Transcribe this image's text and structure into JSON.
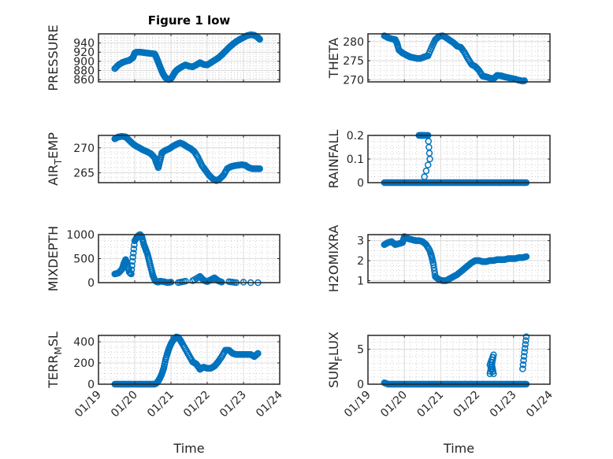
{
  "figure_title": "Figure 1 low",
  "chart_data": [
    {
      "type": "scatter",
      "title": "Figure 1 low",
      "ylabel": "PRESSURE",
      "ylabel_sub": null,
      "xlabel": "",
      "x_ticks": [
        "01/19",
        "01/20",
        "01/21",
        "01/22",
        "01/23",
        "01/24"
      ],
      "show_x_ticklabels": false,
      "xlim": [
        0,
        5
      ],
      "ylim": [
        855,
        960
      ],
      "y_ticks": [
        860,
        880,
        900,
        920,
        940
      ],
      "grid": true,
      "marker": "circle-open",
      "color": "#0072BD",
      "x": [
        0.45,
        0.55,
        0.65,
        0.75,
        0.85,
        0.95,
        1.0,
        1.05,
        1.15,
        1.25,
        1.35,
        1.45,
        1.55,
        1.6,
        1.65,
        1.7,
        1.75,
        1.8,
        1.85,
        1.9,
        1.95,
        2.0,
        2.05,
        2.1,
        2.15,
        2.2,
        2.3,
        2.4,
        2.5,
        2.6,
        2.7,
        2.8,
        2.9,
        3.0,
        3.1,
        3.2,
        3.3,
        3.4,
        3.5,
        3.6,
        3.7,
        3.8,
        3.9,
        4.0,
        4.1,
        4.2,
        4.3,
        4.4,
        4.45
      ],
      "y": [
        884,
        892,
        897,
        900,
        902,
        908,
        918,
        920,
        920,
        919,
        918,
        917,
        916,
        908,
        898,
        888,
        878,
        870,
        864,
        861,
        860,
        862,
        868,
        875,
        880,
        883,
        888,
        892,
        889,
        888,
        892,
        897,
        893,
        892,
        897,
        902,
        907,
        914,
        922,
        930,
        937,
        943,
        948,
        952,
        956,
        958,
        957,
        952,
        948
      ]
    },
    {
      "type": "scatter",
      "ylabel": "THETA",
      "xlabel": "",
      "x_ticks": [
        "01/19",
        "01/20",
        "01/21",
        "01/22",
        "01/23",
        "01/24"
      ],
      "show_x_ticklabels": false,
      "xlim": [
        0,
        5
      ],
      "ylim": [
        269.5,
        282
      ],
      "y_ticks": [
        270,
        275,
        280
      ],
      "grid": true,
      "marker": "circle-open",
      "color": "#0072BD",
      "x": [
        0.45,
        0.55,
        0.65,
        0.75,
        0.8,
        0.85,
        0.95,
        1.05,
        1.15,
        1.25,
        1.35,
        1.45,
        1.55,
        1.65,
        1.75,
        1.85,
        1.95,
        2.05,
        2.15,
        2.25,
        2.35,
        2.45,
        2.55,
        2.65,
        2.75,
        2.85,
        2.95,
        3.05,
        3.15,
        3.25,
        3.35,
        3.45,
        3.55,
        3.65,
        3.75,
        3.85,
        3.95,
        4.05,
        4.15,
        4.25,
        4.3
      ],
      "y": [
        281.5,
        281,
        280.7,
        280.5,
        279.5,
        277.8,
        277,
        276.5,
        276,
        275.8,
        275.6,
        275.6,
        276,
        276.3,
        278.5,
        280.5,
        281.3,
        281.5,
        281,
        280.3,
        279.7,
        278.8,
        278.5,
        277.2,
        275.5,
        274,
        273.5,
        272.5,
        271,
        270.8,
        270.5,
        270.3,
        271.2,
        271.1,
        270.8,
        270.6,
        270.4,
        270.2,
        269.9,
        269.7,
        269.8
      ]
    },
    {
      "type": "scatter",
      "ylabel": "AIR",
      "ylabel_sub": "T",
      "ylabel_rest": "EMP",
      "xlabel": "",
      "x_ticks": [
        "01/19",
        "01/20",
        "01/21",
        "01/22",
        "01/23",
        "01/24"
      ],
      "show_x_ticklabels": false,
      "xlim": [
        0,
        5
      ],
      "ylim": [
        263,
        272.5
      ],
      "y_ticks": [
        265,
        270
      ],
      "grid": true,
      "marker": "circle-open",
      "color": "#0072BD",
      "x": [
        0.45,
        0.55,
        0.65,
        0.75,
        0.85,
        0.95,
        1.05,
        1.15,
        1.25,
        1.35,
        1.45,
        1.55,
        1.6,
        1.65,
        1.7,
        1.75,
        1.85,
        1.95,
        2.05,
        2.15,
        2.25,
        2.35,
        2.45,
        2.55,
        2.65,
        2.75,
        2.85,
        2.95,
        3.05,
        3.15,
        3.25,
        3.35,
        3.45,
        3.55,
        3.65,
        3.75,
        3.85,
        3.95,
        4.05,
        4.15,
        4.25,
        4.35,
        4.45
      ],
      "y": [
        271.8,
        272.2,
        272.3,
        272.2,
        271.5,
        270.8,
        270.3,
        269.9,
        269.5,
        269.2,
        268.8,
        268,
        267,
        266,
        267.5,
        269,
        269.5,
        269.8,
        270.3,
        270.7,
        271,
        270.7,
        270.2,
        269.8,
        269.2,
        268,
        266.5,
        265.5,
        264.5,
        263.8,
        263.4,
        263.8,
        264.5,
        265.8,
        266.2,
        266.4,
        266.5,
        266.6,
        266.5,
        266,
        265.8,
        265.8,
        265.8
      ]
    },
    {
      "type": "scatter",
      "ylabel": "RAINFALL",
      "xlabel": "",
      "x_ticks": [
        "01/19",
        "01/20",
        "01/21",
        "01/22",
        "01/23",
        "01/24"
      ],
      "show_x_ticklabels": false,
      "xlim": [
        0,
        5
      ],
      "ylim": [
        0,
        0.2
      ],
      "y_ticks": [
        0,
        0.1,
        0.2
      ],
      "grid": true,
      "marker": "circle-open",
      "color": "#0072BD",
      "x": [
        0.45,
        0.55,
        0.65,
        0.75,
        0.85,
        0.95,
        1.05,
        1.15,
        1.25,
        1.35,
        1.45,
        1.55,
        1.65,
        1.75,
        1.85,
        1.95,
        2.05,
        2.15,
        2.25,
        2.35,
        2.45,
        2.55,
        2.65,
        2.75,
        2.85,
        2.95,
        3.05,
        3.15,
        3.25,
        3.35,
        3.45,
        3.55,
        3.65,
        3.75,
        3.85,
        3.95,
        4.05,
        4.15,
        4.25,
        4.35,
        1.4,
        1.45,
        1.5,
        1.55,
        1.65,
        1.7,
        1.5
      ],
      "y": [
        0,
        0,
        0,
        0,
        0,
        0,
        0,
        0,
        0,
        0,
        0,
        0,
        0,
        0,
        0,
        0,
        0,
        0,
        0,
        0,
        0,
        0,
        0,
        0,
        0,
        0,
        0,
        0,
        0,
        0,
        0,
        0,
        0,
        0,
        0,
        0,
        0,
        0,
        0,
        0,
        0.2,
        0.2,
        0.2,
        0.2,
        0.2,
        0.1,
        0
      ]
    },
    {
      "type": "scatter",
      "ylabel": "MIXDEPTH",
      "xlabel": "",
      "x_ticks": [
        "01/19",
        "01/20",
        "01/21",
        "01/22",
        "01/23",
        "01/24"
      ],
      "show_x_ticklabels": false,
      "xlim": [
        0,
        5
      ],
      "ylim": [
        0,
        1000
      ],
      "y_ticks": [
        0,
        500,
        1000
      ],
      "grid": true,
      "marker": "circle-open",
      "color": "#0072BD",
      "x": [
        0.45,
        0.55,
        0.65,
        0.7,
        0.75,
        0.8,
        0.85,
        0.9,
        0.95,
        1.0,
        1.05,
        1.1,
        1.15,
        1.2,
        1.25,
        1.3,
        1.35,
        1.4,
        1.45,
        1.5,
        1.55,
        1.6,
        1.65,
        1.7,
        1.8,
        1.9,
        2.0,
        2.2,
        2.4,
        2.6,
        2.8,
        2.9,
        3.0,
        3.1,
        3.2,
        3.3,
        3.4,
        3.6,
        3.8,
        4.0,
        4.2,
        4.4
      ],
      "y": [
        180,
        200,
        280,
        400,
        480,
        360,
        220,
        180,
        530,
        870,
        930,
        980,
        1000,
        950,
        800,
        700,
        600,
        450,
        300,
        150,
        60,
        20,
        10,
        30,
        20,
        0,
        10,
        0,
        30,
        40,
        130,
        50,
        20,
        60,
        100,
        40,
        10,
        20,
        0,
        10,
        0,
        0
      ]
    },
    {
      "type": "scatter",
      "ylabel": "H2OMIXRA",
      "xlabel": "",
      "x_ticks": [
        "01/19",
        "01/20",
        "01/21",
        "01/22",
        "01/23",
        "01/24"
      ],
      "show_x_ticklabels": false,
      "xlim": [
        0,
        5
      ],
      "ylim": [
        0.9,
        3.3
      ],
      "y_ticks": [
        1,
        2,
        3
      ],
      "grid": true,
      "marker": "circle-open",
      "color": "#0072BD",
      "x": [
        0.45,
        0.55,
        0.65,
        0.75,
        0.85,
        0.95,
        1.0,
        1.1,
        1.2,
        1.3,
        1.4,
        1.5,
        1.6,
        1.7,
        1.75,
        1.8,
        1.85,
        1.95,
        2.05,
        2.15,
        2.25,
        2.35,
        2.45,
        2.55,
        2.65,
        2.75,
        2.85,
        2.95,
        3.05,
        3.15,
        3.25,
        3.35,
        3.45,
        3.55,
        3.65,
        3.75,
        3.85,
        3.95,
        4.05,
        4.15,
        4.25,
        4.35
      ],
      "y": [
        2.8,
        2.9,
        2.95,
        2.8,
        2.85,
        2.9,
        3.2,
        3.1,
        3.05,
        3.0,
        3.0,
        2.95,
        2.8,
        2.5,
        2.2,
        1.8,
        1.2,
        1.05,
        1.0,
        1.0,
        1.1,
        1.2,
        1.3,
        1.45,
        1.6,
        1.75,
        1.9,
        2.0,
        2.0,
        1.95,
        1.95,
        2.0,
        2.0,
        2.05,
        2.05,
        2.05,
        2.1,
        2.1,
        2.1,
        2.15,
        2.15,
        2.2
      ]
    },
    {
      "type": "scatter",
      "ylabel": "TERR",
      "ylabel_sub": "M",
      "ylabel_rest": "SL",
      "xlabel": "Time",
      "x_ticks": [
        "01/19",
        "01/20",
        "01/21",
        "01/22",
        "01/23",
        "01/24"
      ],
      "show_x_ticklabels": true,
      "xlim": [
        0,
        5
      ],
      "ylim": [
        0,
        460
      ],
      "y_ticks": [
        0,
        200,
        400
      ],
      "grid": true,
      "marker": "circle-open",
      "color": "#0072BD",
      "x": [
        0.45,
        0.55,
        0.65,
        0.75,
        0.85,
        0.95,
        1.05,
        1.15,
        1.25,
        1.35,
        1.45,
        1.55,
        1.6,
        1.65,
        1.7,
        1.75,
        1.8,
        1.85,
        1.9,
        1.95,
        2.0,
        2.05,
        2.1,
        2.15,
        2.2,
        2.25,
        2.3,
        2.4,
        2.5,
        2.6,
        2.7,
        2.8,
        2.9,
        3.0,
        3.1,
        3.2,
        3.3,
        3.4,
        3.5,
        3.6,
        3.7,
        3.8,
        3.9,
        4.0,
        4.1,
        4.2,
        4.3,
        4.4
      ],
      "y": [
        0,
        0,
        0,
        0,
        0,
        0,
        0,
        0,
        0,
        0,
        0,
        0,
        10,
        30,
        60,
        100,
        150,
        230,
        290,
        340,
        380,
        410,
        430,
        445,
        440,
        420,
        390,
        330,
        270,
        210,
        190,
        140,
        160,
        150,
        150,
        170,
        210,
        260,
        320,
        320,
        290,
        280,
        280,
        280,
        280,
        280,
        260,
        290
      ]
    },
    {
      "type": "scatter",
      "ylabel": "SUN",
      "ylabel_sub": "F",
      "ylabel_rest": "LUX",
      "xlabel": "Time",
      "x_ticks": [
        "01/19",
        "01/20",
        "01/21",
        "01/22",
        "01/23",
        "01/24"
      ],
      "show_x_ticklabels": true,
      "xlim": [
        0,
        5
      ],
      "ylim": [
        0,
        7
      ],
      "y_ticks": [
        0,
        5
      ],
      "grid": true,
      "marker": "circle-open",
      "color": "#0072BD",
      "x": [
        0.45,
        0.55,
        0.65,
        0.75,
        0.85,
        0.95,
        1.05,
        1.15,
        1.25,
        1.35,
        1.45,
        1.55,
        1.65,
        1.75,
        1.85,
        1.95,
        2.05,
        2.15,
        2.25,
        2.35,
        2.45,
        2.55,
        2.65,
        2.75,
        2.85,
        2.95,
        3.05,
        3.15,
        3.25,
        3.35,
        3.45,
        3.55,
        3.65,
        3.75,
        3.85,
        3.95,
        4.05,
        4.15,
        4.25,
        4.35,
        3.35,
        3.4,
        3.45,
        3.35,
        3.45,
        3.4,
        4.25,
        4.3,
        4.35
      ],
      "y": [
        0.2,
        0,
        0,
        0,
        0,
        0,
        0,
        0,
        0,
        0,
        0,
        0,
        0,
        0,
        0,
        0,
        0,
        0,
        0,
        0,
        0,
        0,
        0,
        0,
        0,
        0,
        0,
        0,
        0,
        0,
        0,
        0,
        0,
        0,
        0,
        0,
        0,
        0,
        0,
        0,
        1.5,
        2.8,
        4.2,
        2.8,
        1.5,
        2.8,
        2.2,
        4.6,
        6.8
      ]
    }
  ]
}
